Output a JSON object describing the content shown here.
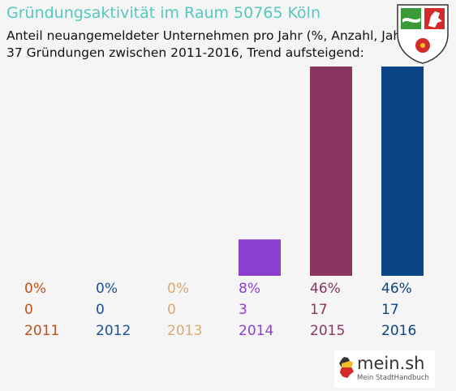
{
  "title": "Gründungsaktivität im Raum 50765 Köln",
  "subtitle_line1": "Anteil neuangemeldeter Unternehmen pro Jahr (%, Anzahl, Jahr)",
  "subtitle_line2": "37 Gründungen zwischen 2011-2016, Trend aufsteigend:",
  "coat_of_arms_icon": "nrw-coat-of-arms-icon",
  "brand": {
    "name": "mein.sh",
    "tagline": "Mein StadtHandbuch",
    "icon": "germany-map-icon"
  },
  "colors": {
    "title": "#55c8c0",
    "background": "#f5f5f5"
  },
  "chart_data": {
    "type": "bar",
    "categories": [
      "2011",
      "2012",
      "2013",
      "2014",
      "2015",
      "2016"
    ],
    "values": [
      0,
      0,
      0,
      8,
      46,
      46
    ],
    "counts": [
      0,
      0,
      0,
      3,
      17,
      17
    ],
    "percent_labels": [
      "0%",
      "0%",
      "0%",
      "8%",
      "46%",
      "46%"
    ],
    "colors": [
      "#c0511b",
      "#1a4f93",
      "#d9a877",
      "#8b3fd1",
      "#8b3560",
      "#0a4585"
    ],
    "ylim": [
      0,
      46
    ]
  }
}
